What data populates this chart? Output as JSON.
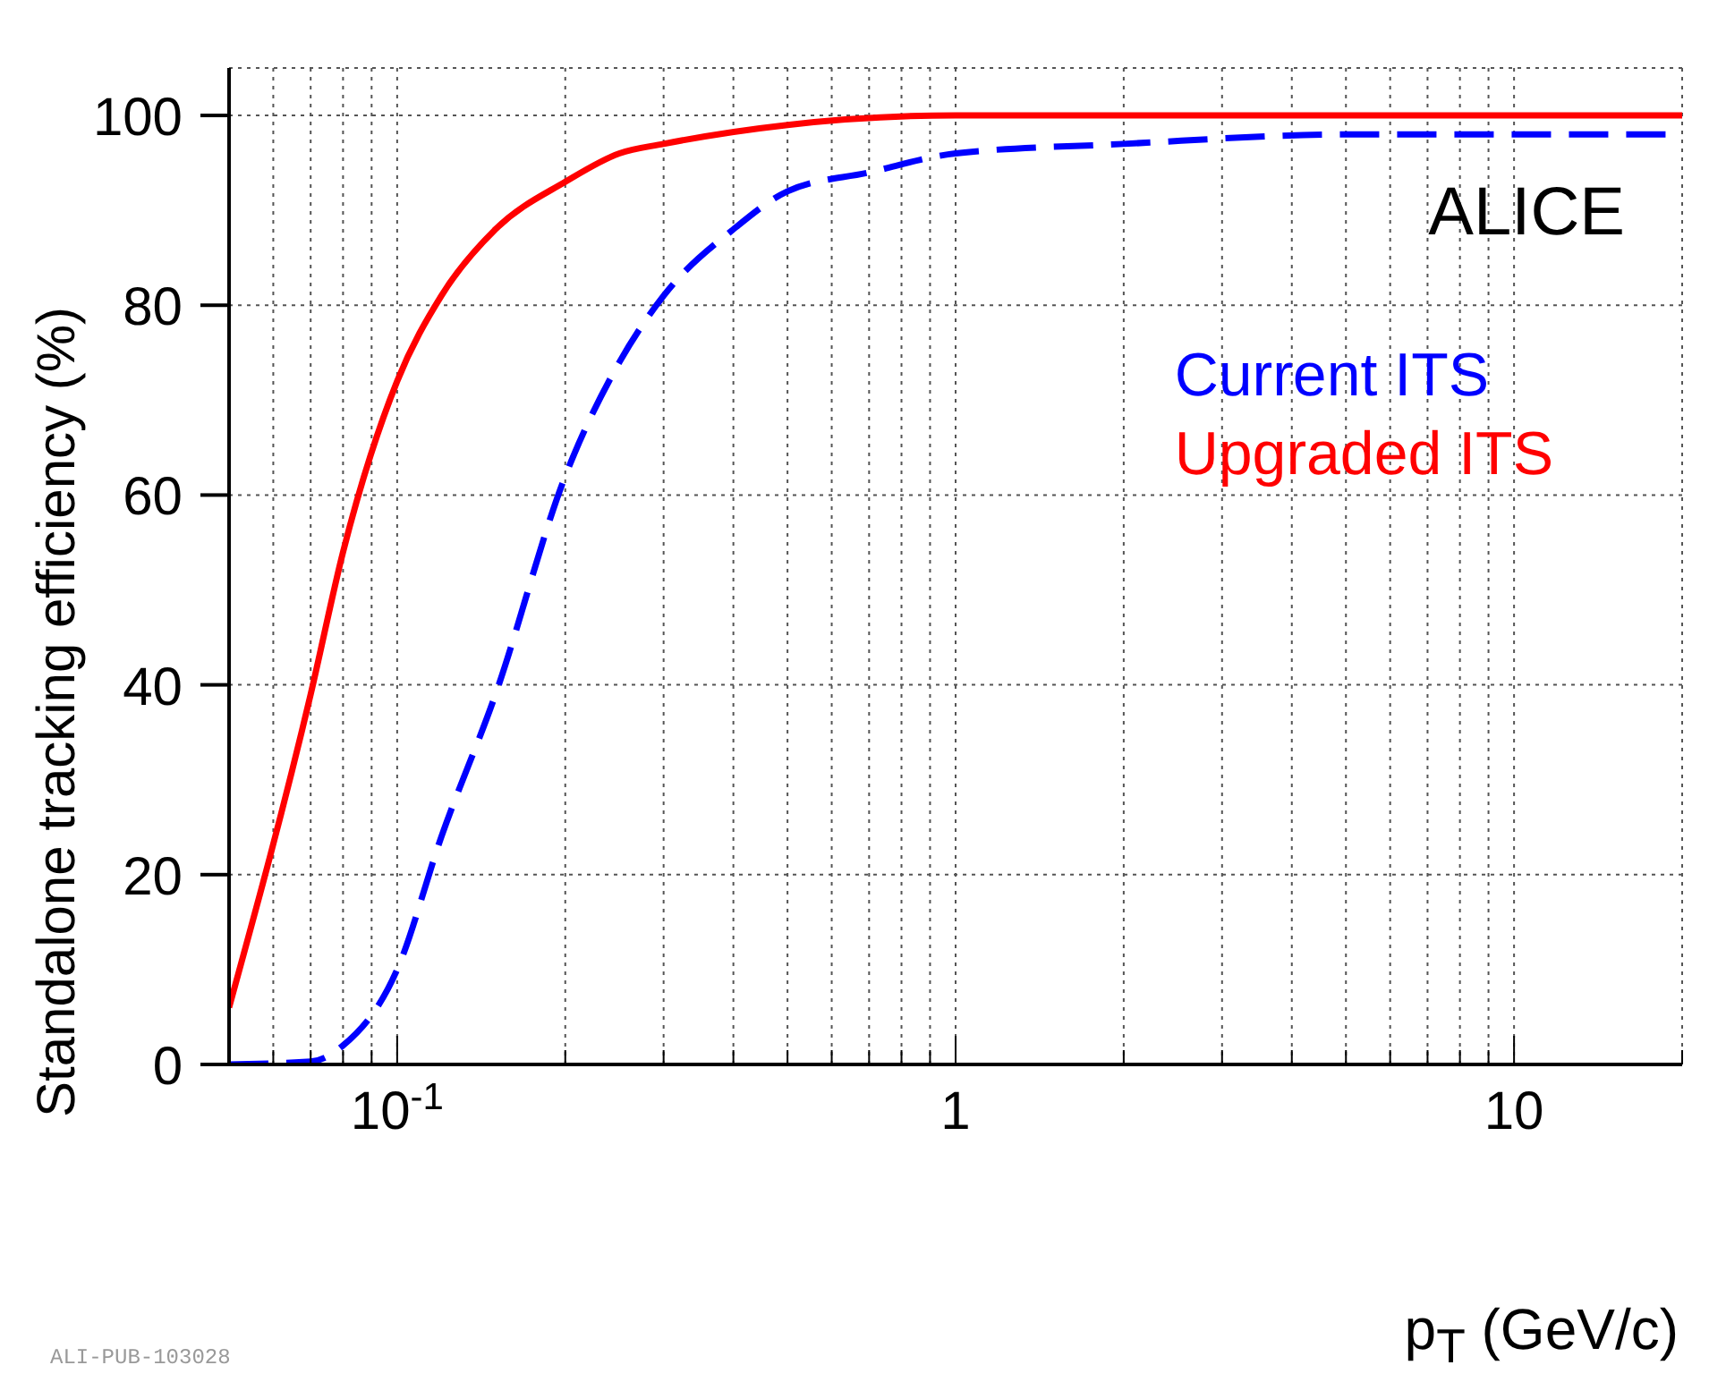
{
  "chart_data": {
    "type": "line",
    "xlabel": "p$_{T}$ (GeV/c)",
    "ylabel": "Standalone tracking efficiency (%)",
    "log": "x",
    "grid": true,
    "legend": "top right",
    "xlim": [
      0.05,
      20
    ],
    "ylim": [
      0,
      105
    ],
    "xticks": [
      {
        "value": 0.1,
        "label": "10$^{-1}$"
      },
      1,
      10,
      {
        "value": 0.06,
        "label": null
      },
      {
        "value": 0.07,
        "label": null
      },
      {
        "value": 0.08,
        "label": null
      },
      {
        "value": 0.09,
        "label": null
      },
      {
        "value": 0.2,
        "label": null
      },
      {
        "value": 0.3,
        "label": null
      },
      {
        "value": 0.4,
        "label": null
      },
      {
        "value": 0.5,
        "label": null
      },
      {
        "value": 0.6,
        "label": null
      },
      {
        "value": 0.7,
        "label": null
      },
      {
        "value": 0.8,
        "label": null
      },
      {
        "value": 0.9,
        "label": null
      },
      {
        "value": 2,
        "label": null
      },
      {
        "value": 3,
        "label": null
      },
      {
        "value": 4,
        "label": null
      },
      {
        "value": 5,
        "label": null
      },
      {
        "value": 6,
        "label": null
      },
      {
        "value": 7,
        "label": null
      },
      {
        "value": 8,
        "label": null
      },
      {
        "value": 9,
        "label": null
      },
      {
        "value": 20,
        "label": null
      }
    ],
    "yticks": [
      0,
      20,
      40,
      60,
      80,
      100
    ],
    "series": [
      {
        "name": "Current ITS",
        "color": "#0000ff",
        "line_style": "dashed",
        "x": [
          0.05,
          0.07,
          0.08,
          0.1,
          0.12,
          0.15,
          0.2,
          0.25,
          0.3,
          0.4,
          0.5,
          0.7,
          1,
          2,
          5,
          20
        ],
        "values": [
          0,
          0.3,
          2,
          10,
          24,
          39,
          62,
          74,
          81,
          88,
          92,
          94,
          96,
          97,
          98,
          98
        ]
      },
      {
        "name": "Upgraded ITS",
        "color": "#ff0000",
        "line_style": "solid",
        "x": [
          0.05,
          0.07,
          0.08,
          0.1,
          0.12,
          0.15,
          0.2,
          0.25,
          0.3,
          0.5,
          1,
          20
        ],
        "values": [
          6,
          39,
          54,
          72,
          81,
          88,
          93,
          96,
          97,
          99,
          100,
          100
        ]
      }
    ],
    "annotations": [
      "ALICE",
      "ALI-PUB-103028"
    ]
  }
}
